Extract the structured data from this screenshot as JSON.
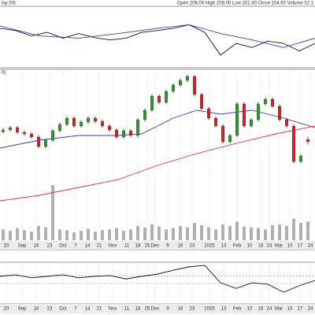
{
  "chart_data": [
    {
      "type": "candlestick",
      "header": "Open 206.00  High 208.00  Low 202.80  Close 204.60  Volume 52.1",
      "label": "0)",
      "x": [
        4,
        13,
        22,
        31,
        40,
        49,
        58,
        67,
        76,
        85,
        94,
        103,
        112,
        121,
        130,
        139,
        148,
        157,
        166,
        175,
        184,
        193,
        202,
        211,
        220,
        229,
        238,
        247,
        256,
        265,
        274,
        283,
        292,
        301,
        310,
        319,
        328,
        337,
        346,
        355,
        364,
        373,
        382,
        391
      ],
      "open": [
        211.0,
        212.1,
        213.6,
        210.6,
        209.6,
        207.6,
        201.6,
        205.6,
        211.6,
        215.6,
        219.6,
        214.6,
        217.1,
        219.6,
        217.6,
        214.6,
        212.1,
        207.6,
        211.6,
        208.6,
        218.6,
        224.6,
        233.6,
        229.6,
        236.6,
        240.6,
        243.6,
        246.1,
        234.6,
        225.6,
        219.6,
        214.6,
        204.6,
        208.6,
        228.6,
        214.6,
        218.6,
        228.6,
        231.6,
        227.1,
        218.6,
        214.6,
        192.1,
        206.0
      ],
      "high": [
        213.3,
        214.8,
        214.8,
        211.8,
        210.8,
        208.8,
        206.8,
        212.8,
        216.8,
        220.8,
        220.8,
        218.3,
        220.8,
        220.8,
        218.8,
        215.8,
        213.3,
        212.8,
        212.8,
        219.8,
        225.8,
        234.8,
        234.8,
        237.8,
        241.8,
        244.8,
        247.3,
        247.3,
        235.8,
        226.8,
        220.8,
        215.8,
        209.8,
        229.8,
        229.8,
        219.8,
        229.8,
        232.8,
        232.8,
        228.3,
        219.8,
        215.8,
        196.8,
        208.0
      ],
      "low": [
        209.8,
        210.9,
        209.4,
        208.4,
        206.4,
        200.4,
        200.4,
        204.4,
        210.4,
        214.4,
        213.4,
        213.4,
        215.9,
        216.4,
        213.4,
        210.9,
        206.4,
        206.4,
        207.4,
        207.4,
        217.4,
        223.4,
        228.4,
        228.4,
        235.4,
        239.4,
        242.4,
        233.4,
        224.4,
        218.4,
        213.4,
        203.4,
        203.4,
        207.4,
        213.4,
        213.4,
        217.4,
        227.4,
        225.9,
        217.4,
        213.4,
        190.9,
        190.9,
        202.8
      ],
      "close": [
        212.1,
        213.6,
        210.6,
        209.6,
        207.6,
        201.6,
        205.6,
        211.6,
        215.6,
        219.6,
        214.6,
        217.1,
        219.6,
        217.6,
        214.6,
        212.1,
        207.6,
        211.6,
        208.6,
        218.6,
        224.6,
        233.6,
        229.6,
        236.6,
        240.6,
        243.6,
        246.1,
        234.6,
        225.6,
        219.6,
        214.6,
        204.6,
        208.6,
        228.6,
        214.6,
        218.6,
        228.6,
        231.6,
        227.1,
        218.6,
        214.6,
        192.1,
        195.6,
        204.6
      ],
      "volume": [
        30,
        26,
        34,
        28,
        24,
        40,
        36,
        154,
        30,
        28,
        22,
        26,
        32,
        24,
        28,
        30,
        34,
        26,
        30,
        40,
        36,
        44,
        38,
        30,
        34,
        40,
        36,
        48,
        42,
        36,
        30,
        44,
        40,
        52,
        38,
        36,
        34,
        30,
        42,
        44,
        40,
        60,
        48,
        52.1
      ],
      "up_color": "#2a9a2a",
      "down_color": "#d42020",
      "volume_color": "#b0b0b0",
      "series": [
        {
          "color": "#3040c0",
          "x": [
            0,
            50,
            100,
            150,
            180,
            220,
            250,
            280,
            320,
            360,
            400
          ],
          "values": [
            200.6,
            205.6,
            208.6,
            208.6,
            209.6,
            219.6,
            224.6,
            222.1,
            224.6,
            219.6,
            213.6
          ]
        },
        {
          "color": "#e03030",
          "x": [
            0,
            50,
            100,
            150,
            200,
            250,
            300,
            350,
            400
          ],
          "values": [
            167.1,
            170.6,
            175.6,
            180.6,
            189.6,
            197.1,
            203.6,
            209.6,
            214.6
          ]
        }
      ],
      "xlim": [
        0,
        400
      ],
      "ylim": [
        135.6,
        250.6
      ],
      "vlim": [
        0,
        500
      ],
      "xticks": [
        {
          "value": 8,
          "label": "20"
        },
        {
          "value": 28,
          "label": "Sep"
        },
        {
          "value": 46,
          "label": "16"
        },
        {
          "value": 63,
          "label": "23"
        },
        {
          "value": 80,
          "label": "Oct"
        },
        {
          "value": 96,
          "label": "7"
        },
        {
          "value": 111,
          "label": "14"
        },
        {
          "value": 126,
          "label": "21"
        },
        {
          "value": 143,
          "label": "Nov"
        },
        {
          "value": 161,
          "label": "11"
        },
        {
          "value": 175,
          "label": "18"
        },
        {
          "value": 187,
          "label": "25"
        },
        {
          "value": 197,
          "label": "Dec"
        },
        {
          "value": 213,
          "label": "9"
        },
        {
          "value": 229,
          "label": "16"
        },
        {
          "value": 244,
          "label": "23"
        },
        {
          "value": 266,
          "label": "2025"
        },
        {
          "value": 284,
          "label": "13"
        },
        {
          "value": 301,
          "label": "Feb"
        },
        {
          "value": 317,
          "label": "10"
        },
        {
          "value": 331,
          "label": "18"
        },
        {
          "value": 342,
          "label": "24"
        },
        {
          "value": 354,
          "label": "Mar"
        },
        {
          "value": 368,
          "label": "10"
        },
        {
          "value": 381,
          "label": "17"
        },
        {
          "value": 394,
          "label": "24"
        }
      ]
    },
    {
      "type": "line",
      "label": "lay 0/5",
      "series": [
        {
          "color": "#111111",
          "x": [
            0,
            20,
            40,
            60,
            80,
            100,
            120,
            140,
            160,
            180,
            200,
            220,
            240,
            260,
            280,
            300,
            320,
            340,
            360,
            380,
            400
          ],
          "values": [
            65,
            61,
            52,
            58,
            48,
            56,
            49,
            45,
            48,
            58,
            61,
            65,
            71,
            58,
            19,
            39,
            32,
            43,
            39,
            26,
            39
          ]
        },
        {
          "color": "#3040c0",
          "x": [
            0,
            50,
            100,
            150,
            200,
            240,
            280,
            320,
            360,
            400
          ],
          "values": [
            69,
            52,
            48,
            56,
            65,
            71,
            56,
            45,
            32,
            48
          ]
        }
      ],
      "xlim": [
        0,
        400
      ],
      "ylim": [
        0,
        100
      ]
    },
    {
      "type": "line",
      "series": [
        {
          "color": "#111111",
          "x": [
            0,
            20,
            40,
            60,
            80,
            100,
            120,
            140,
            160,
            180,
            200,
            220,
            240,
            260,
            280,
            300,
            320,
            340,
            360,
            380,
            400
          ],
          "values": [
            69,
            73,
            65,
            69,
            73,
            65,
            69,
            71,
            62,
            69,
            75,
            85,
            94,
            98,
            52,
            37,
            52,
            48,
            27,
            44,
            58
          ]
        }
      ],
      "hlines": [
        70,
        50
      ],
      "xlim": [
        0,
        400
      ],
      "ylim": [
        0,
        100
      ]
    }
  ]
}
